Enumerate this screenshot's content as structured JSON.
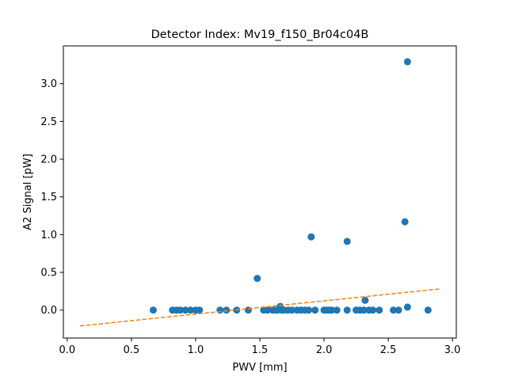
{
  "chart_data": {
    "type": "scatter",
    "title": "Detector Index: Mv19_f150_Br04c04B",
    "xlabel": "PWV [mm]",
    "ylabel": "A2 Signal [pW]",
    "xlim": [
      -0.03,
      3.03
    ],
    "ylim": [
      -0.37,
      3.5
    ],
    "xticks": [
      0.0,
      0.5,
      1.0,
      1.5,
      2.0,
      2.5,
      3.0
    ],
    "xtick_labels": [
      "0.0",
      "0.5",
      "1.0",
      "1.5",
      "2.0",
      "2.5",
      "3.0"
    ],
    "yticks": [
      0.0,
      0.5,
      1.0,
      1.5,
      2.0,
      2.5,
      3.0
    ],
    "ytick_labels": [
      "0.0",
      "0.5",
      "1.0",
      "1.5",
      "2.0",
      "2.5",
      "3.0"
    ],
    "colors": {
      "points": "#1f77b4",
      "fit": "#ff7f0e"
    },
    "series": [
      {
        "name": "measurements",
        "kind": "points",
        "x": [
          0.67,
          0.82,
          0.85,
          0.88,
          0.92,
          0.96,
          1.0,
          1.03,
          1.19,
          1.24,
          1.32,
          1.41,
          1.48,
          1.53,
          1.56,
          1.6,
          1.62,
          1.64,
          1.66,
          1.67,
          1.69,
          1.72,
          1.75,
          1.79,
          1.82,
          1.85,
          1.88,
          1.9,
          1.93,
          2.0,
          2.02,
          2.04,
          2.06,
          2.1,
          2.18,
          2.18,
          2.25,
          2.28,
          2.31,
          2.32,
          2.35,
          2.38,
          2.43,
          2.54,
          2.58,
          2.63,
          2.65,
          2.65,
          2.81
        ],
        "y": [
          0.0,
          0.0,
          0.0,
          0.0,
          0.0,
          0.0,
          0.0,
          0.0,
          0.0,
          0.0,
          0.0,
          0.0,
          0.42,
          0.0,
          0.0,
          0.0,
          0.0,
          0.0,
          0.05,
          0.0,
          0.0,
          0.0,
          0.0,
          0.0,
          0.0,
          0.0,
          0.0,
          0.97,
          0.0,
          0.0,
          0.0,
          0.0,
          0.0,
          0.0,
          0.0,
          0.91,
          0.0,
          0.0,
          0.0,
          0.13,
          0.0,
          0.0,
          0.0,
          0.0,
          0.0,
          1.17,
          3.29,
          0.04,
          0.0
        ]
      },
      {
        "name": "fit",
        "kind": "dashed-line",
        "x": [
          0.1,
          2.9
        ],
        "y": [
          -0.21,
          0.28
        ]
      }
    ]
  }
}
